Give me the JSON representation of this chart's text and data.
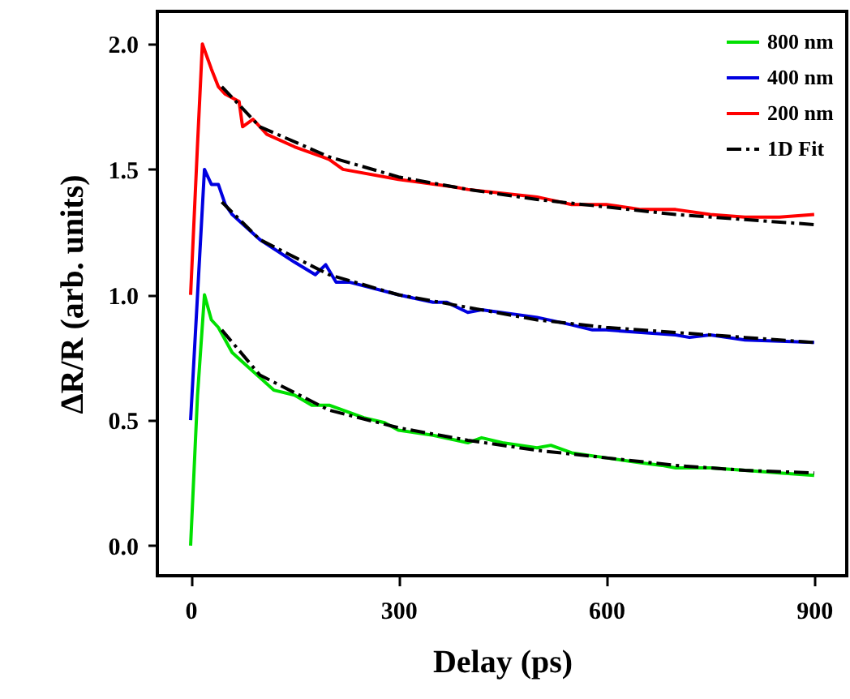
{
  "chart_data": {
    "type": "line",
    "xlabel": "Delay (ps)",
    "ylabel": "ΔR/R (arb. units)",
    "xlim": [
      -48,
      947
    ],
    "xticks": [
      0,
      300,
      600,
      900
    ],
    "ylim": [
      -0.12,
      2.13
    ],
    "yticks": [
      {
        "value": 0,
        "label": "0.0"
      },
      0.5,
      {
        "value": 1,
        "label": "1.0"
      },
      1.5,
      {
        "value": 2,
        "label": "2.0"
      }
    ],
    "grid": false,
    "legend": "top right",
    "marker": "none",
    "series": [
      {
        "name": "800 nm",
        "color": "#00e000",
        "line_style": "solid",
        "x": [
          0,
          10,
          20,
          30,
          40,
          50,
          60,
          80,
          100,
          120,
          150,
          175,
          200,
          250,
          280,
          300,
          350,
          400,
          420,
          450,
          500,
          520,
          550,
          600,
          650,
          680,
          700,
          750,
          800,
          850,
          900
        ],
        "values": [
          0,
          0.6,
          1.0,
          0.9,
          0.87,
          0.82,
          0.77,
          0.72,
          0.67,
          0.62,
          0.6,
          0.56,
          0.56,
          0.51,
          0.49,
          0.46,
          0.44,
          0.41,
          0.43,
          0.41,
          0.39,
          0.4,
          0.37,
          0.35,
          0.33,
          0.32,
          0.31,
          0.31,
          0.3,
          0.29,
          0.28
        ]
      },
      {
        "name": "400 nm",
        "color": "#0000e0",
        "line_style": "solid",
        "x": [
          0,
          10,
          20,
          30,
          40,
          50,
          60,
          80,
          100,
          150,
          180,
          195,
          210,
          230,
          300,
          350,
          370,
          400,
          420,
          500,
          550,
          580,
          600,
          650,
          700,
          720,
          750,
          800,
          900
        ],
        "values": [
          0.5,
          1.0,
          1.5,
          1.44,
          1.44,
          1.36,
          1.32,
          1.27,
          1.22,
          1.13,
          1.08,
          1.12,
          1.05,
          1.05,
          1.0,
          0.97,
          0.97,
          0.93,
          0.94,
          0.91,
          0.88,
          0.86,
          0.86,
          0.85,
          0.84,
          0.83,
          0.84,
          0.82,
          0.81
        ]
      },
      {
        "name": "200 nm",
        "color": "#ff0000",
        "line_style": "solid",
        "x": [
          0,
          10,
          17,
          30,
          40,
          50,
          70,
          75,
          90,
          110,
          150,
          190,
          200,
          220,
          300,
          380,
          400,
          500,
          550,
          600,
          650,
          700,
          750,
          800,
          850,
          900
        ],
        "values": [
          1.0,
          1.6,
          2.0,
          1.9,
          1.83,
          1.8,
          1.77,
          1.67,
          1.7,
          1.64,
          1.59,
          1.55,
          1.54,
          1.5,
          1.46,
          1.43,
          1.42,
          1.39,
          1.36,
          1.36,
          1.34,
          1.34,
          1.32,
          1.31,
          1.31,
          1.32
        ]
      },
      {
        "name": "1D Fit",
        "color": "#000000",
        "line_style": "dashed",
        "x": [
          45,
          100,
          200,
          300,
          400,
          500,
          600,
          700,
          800,
          900
        ],
        "values": [
          0.86,
          0.68,
          0.54,
          0.47,
          0.42,
          0.38,
          0.35,
          0.32,
          0.3,
          0.29
        ]
      },
      {
        "color": "#000000",
        "line_style": "dashed",
        "x": [
          45,
          100,
          200,
          300,
          400,
          500,
          600,
          700,
          800,
          900
        ],
        "values": [
          1.37,
          1.22,
          1.08,
          1.0,
          0.95,
          0.9,
          0.87,
          0.85,
          0.83,
          0.81
        ]
      },
      {
        "color": "#000000",
        "line_style": "dashed",
        "x": [
          45,
          100,
          200,
          300,
          400,
          500,
          600,
          700,
          800,
          900
        ],
        "values": [
          1.83,
          1.67,
          1.55,
          1.47,
          1.42,
          1.38,
          1.35,
          1.32,
          1.3,
          1.28
        ]
      }
    ]
  }
}
